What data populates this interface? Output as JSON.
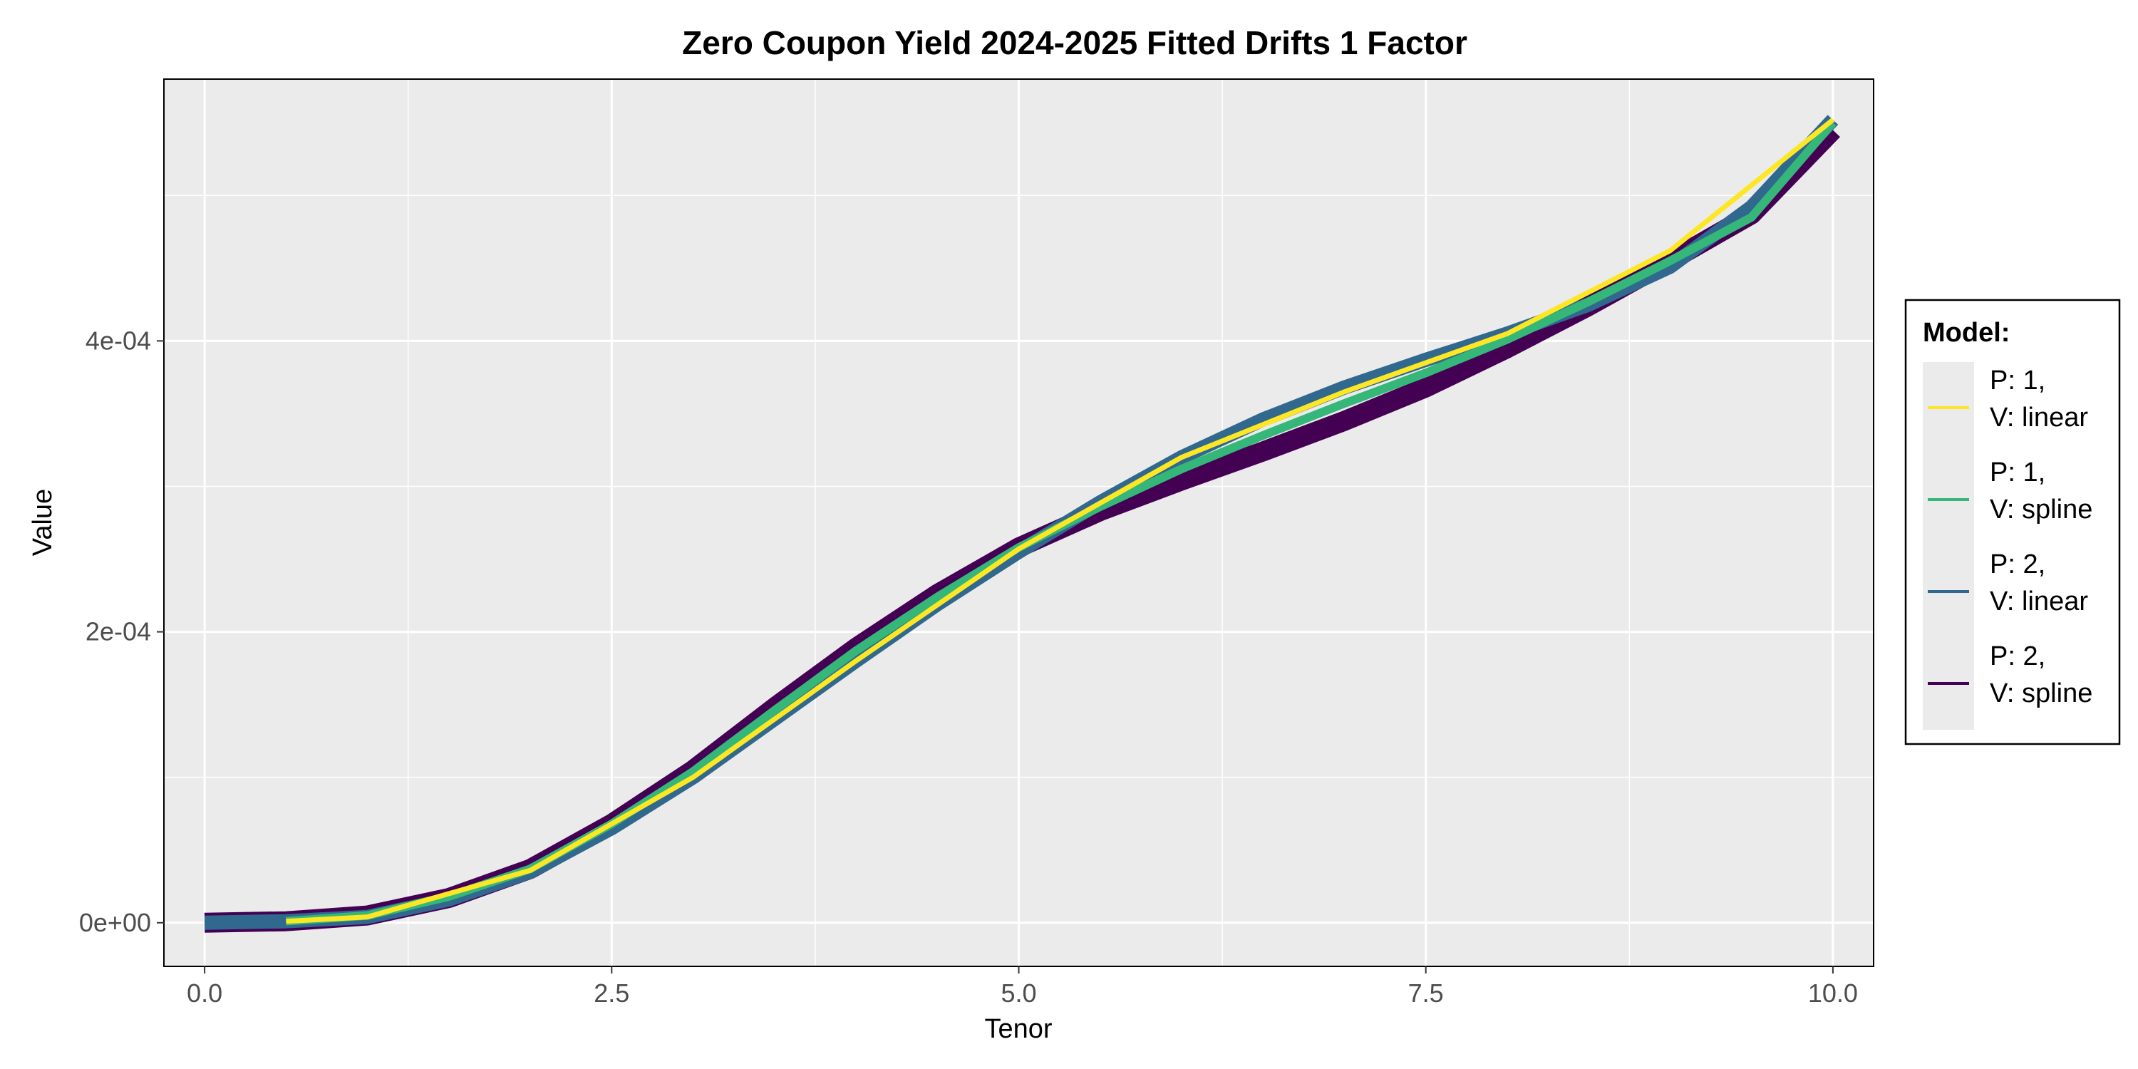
{
  "chart_data": {
    "type": "line",
    "title": "Zero Coupon Yield 2024-2025 Fitted Drifts 1 Factor",
    "xlabel": "Tenor",
    "ylabel": "Value",
    "xlim": [
      -0.25,
      10.25
    ],
    "ylim": [
      -3e-05,
      0.00058
    ],
    "x_ticks": [
      0,
      2.5,
      5,
      7.5,
      10
    ],
    "x_tick_labels": [
      "0.0",
      "2.5",
      "5.0",
      "7.5",
      "10.0"
    ],
    "y_ticks": [
      0,
      0.0002,
      0.0004
    ],
    "y_tick_labels": [
      "0e+00",
      "2e-04",
      "4e-04"
    ],
    "grid": true,
    "legend_position": "right",
    "legend_title": "Model:",
    "series": [
      {
        "name": "P: 2,\nV: spline",
        "label_lines": [
          "P: 2,",
          "V: spline"
        ],
        "color": "#440154",
        "x": [
          0,
          0.5,
          1,
          1.5,
          2,
          2.5,
          3,
          3.5,
          4,
          4.5,
          5,
          5.5,
          6,
          6.5,
          7,
          7.5,
          8,
          8.5,
          9,
          9.5,
          10
        ],
        "y": [
          0,
          1e-06,
          5e-06,
          1.7e-05,
          3.7e-05,
          6.8e-05,
          0.000105,
          0.000148,
          0.000189,
          0.000226,
          0.000258,
          0.000283,
          0.000304,
          0.000324,
          0.000345,
          0.000368,
          0.000395,
          0.000424,
          0.000455,
          0.000487,
          0.000545
        ]
      },
      {
        "name": "P: 2,\nV: linear",
        "label_lines": [
          "P: 2,",
          "V: linear"
        ],
        "color": "#31688e",
        "x": [
          0,
          0.5,
          1,
          1.5,
          2,
          2.5,
          3,
          3.5,
          4,
          4.5,
          5,
          5.5,
          6,
          6.5,
          7,
          7.5,
          8,
          8.5,
          9,
          9.5,
          10
        ],
        "y": [
          0,
          1e-06,
          4e-06,
          1.6e-05,
          3.5e-05,
          6.5e-05,
          0.0001,
          0.00014,
          0.00018,
          0.000219,
          0.000255,
          0.000289,
          0.00032,
          0.000346,
          0.000368,
          0.000387,
          0.000405,
          0.000425,
          0.000451,
          0.000492,
          0.000552
        ]
      },
      {
        "name": "P: 1,\nV: spline",
        "label_lines": [
          "P: 1,",
          "V: spline"
        ],
        "color": "#35b779",
        "x": [
          0.5,
          1,
          1.5,
          2,
          2.5,
          3,
          3.5,
          4,
          4.5,
          5,
          5.5,
          6,
          6.5,
          7,
          7.5,
          8,
          8.5,
          9,
          9.5,
          10
        ],
        "y": [
          1e-06,
          5e-06,
          1.8e-05,
          3.7e-05,
          6.8e-05,
          0.000104,
          0.000146,
          0.000187,
          0.000224,
          0.000258,
          0.000286,
          0.000312,
          0.000335,
          0.000357,
          0.000378,
          0.000401,
          0.000427,
          0.000455,
          0.000485,
          0.00055
        ]
      },
      {
        "name": "P: 1,\nV: linear",
        "label_lines": [
          "P: 1,",
          "V: linear"
        ],
        "color": "#fde725",
        "x": [
          0.5,
          1,
          2,
          3,
          4,
          5,
          6,
          7,
          8,
          9,
          10
        ],
        "y": [
          1e-06,
          4e-06,
          3.6e-05,
          0.0001,
          0.00018,
          0.000257,
          0.00032,
          0.000365,
          0.000405,
          0.000462,
          0.000552
        ]
      }
    ]
  }
}
